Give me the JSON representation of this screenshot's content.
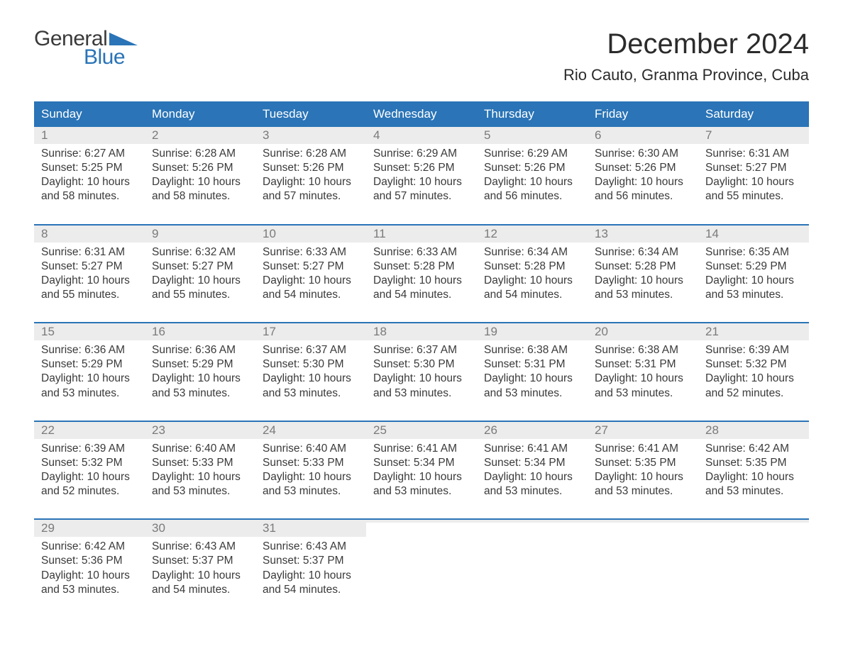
{
  "colors": {
    "header_bg": "#2a74b7",
    "header_text": "#ffffff",
    "daynum_bg": "#ececec",
    "daynum_text": "#7a7a7a",
    "body_text": "#3a3a3a",
    "week_border": "#2a74b7",
    "logo_blue": "#2a74b7",
    "background": "#ffffff"
  },
  "logo": {
    "line1": "General",
    "line2": "Blue"
  },
  "title": "December 2024",
  "location": "Rio Cauto, Granma Province, Cuba",
  "day_names": [
    "Sunday",
    "Monday",
    "Tuesday",
    "Wednesday",
    "Thursday",
    "Friday",
    "Saturday"
  ],
  "weeks": [
    [
      {
        "n": "1",
        "sr": "Sunrise: 6:27 AM",
        "ss": "Sunset: 5:25 PM",
        "d1": "Daylight: 10 hours",
        "d2": "and 58 minutes."
      },
      {
        "n": "2",
        "sr": "Sunrise: 6:28 AM",
        "ss": "Sunset: 5:26 PM",
        "d1": "Daylight: 10 hours",
        "d2": "and 58 minutes."
      },
      {
        "n": "3",
        "sr": "Sunrise: 6:28 AM",
        "ss": "Sunset: 5:26 PM",
        "d1": "Daylight: 10 hours",
        "d2": "and 57 minutes."
      },
      {
        "n": "4",
        "sr": "Sunrise: 6:29 AM",
        "ss": "Sunset: 5:26 PM",
        "d1": "Daylight: 10 hours",
        "d2": "and 57 minutes."
      },
      {
        "n": "5",
        "sr": "Sunrise: 6:29 AM",
        "ss": "Sunset: 5:26 PM",
        "d1": "Daylight: 10 hours",
        "d2": "and 56 minutes."
      },
      {
        "n": "6",
        "sr": "Sunrise: 6:30 AM",
        "ss": "Sunset: 5:26 PM",
        "d1": "Daylight: 10 hours",
        "d2": "and 56 minutes."
      },
      {
        "n": "7",
        "sr": "Sunrise: 6:31 AM",
        "ss": "Sunset: 5:27 PM",
        "d1": "Daylight: 10 hours",
        "d2": "and 55 minutes."
      }
    ],
    [
      {
        "n": "8",
        "sr": "Sunrise: 6:31 AM",
        "ss": "Sunset: 5:27 PM",
        "d1": "Daylight: 10 hours",
        "d2": "and 55 minutes."
      },
      {
        "n": "9",
        "sr": "Sunrise: 6:32 AM",
        "ss": "Sunset: 5:27 PM",
        "d1": "Daylight: 10 hours",
        "d2": "and 55 minutes."
      },
      {
        "n": "10",
        "sr": "Sunrise: 6:33 AM",
        "ss": "Sunset: 5:27 PM",
        "d1": "Daylight: 10 hours",
        "d2": "and 54 minutes."
      },
      {
        "n": "11",
        "sr": "Sunrise: 6:33 AM",
        "ss": "Sunset: 5:28 PM",
        "d1": "Daylight: 10 hours",
        "d2": "and 54 minutes."
      },
      {
        "n": "12",
        "sr": "Sunrise: 6:34 AM",
        "ss": "Sunset: 5:28 PM",
        "d1": "Daylight: 10 hours",
        "d2": "and 54 minutes."
      },
      {
        "n": "13",
        "sr": "Sunrise: 6:34 AM",
        "ss": "Sunset: 5:28 PM",
        "d1": "Daylight: 10 hours",
        "d2": "and 53 minutes."
      },
      {
        "n": "14",
        "sr": "Sunrise: 6:35 AM",
        "ss": "Sunset: 5:29 PM",
        "d1": "Daylight: 10 hours",
        "d2": "and 53 minutes."
      }
    ],
    [
      {
        "n": "15",
        "sr": "Sunrise: 6:36 AM",
        "ss": "Sunset: 5:29 PM",
        "d1": "Daylight: 10 hours",
        "d2": "and 53 minutes."
      },
      {
        "n": "16",
        "sr": "Sunrise: 6:36 AM",
        "ss": "Sunset: 5:29 PM",
        "d1": "Daylight: 10 hours",
        "d2": "and 53 minutes."
      },
      {
        "n": "17",
        "sr": "Sunrise: 6:37 AM",
        "ss": "Sunset: 5:30 PM",
        "d1": "Daylight: 10 hours",
        "d2": "and 53 minutes."
      },
      {
        "n": "18",
        "sr": "Sunrise: 6:37 AM",
        "ss": "Sunset: 5:30 PM",
        "d1": "Daylight: 10 hours",
        "d2": "and 53 minutes."
      },
      {
        "n": "19",
        "sr": "Sunrise: 6:38 AM",
        "ss": "Sunset: 5:31 PM",
        "d1": "Daylight: 10 hours",
        "d2": "and 53 minutes."
      },
      {
        "n": "20",
        "sr": "Sunrise: 6:38 AM",
        "ss": "Sunset: 5:31 PM",
        "d1": "Daylight: 10 hours",
        "d2": "and 53 minutes."
      },
      {
        "n": "21",
        "sr": "Sunrise: 6:39 AM",
        "ss": "Sunset: 5:32 PM",
        "d1": "Daylight: 10 hours",
        "d2": "and 52 minutes."
      }
    ],
    [
      {
        "n": "22",
        "sr": "Sunrise: 6:39 AM",
        "ss": "Sunset: 5:32 PM",
        "d1": "Daylight: 10 hours",
        "d2": "and 52 minutes."
      },
      {
        "n": "23",
        "sr": "Sunrise: 6:40 AM",
        "ss": "Sunset: 5:33 PM",
        "d1": "Daylight: 10 hours",
        "d2": "and 53 minutes."
      },
      {
        "n": "24",
        "sr": "Sunrise: 6:40 AM",
        "ss": "Sunset: 5:33 PM",
        "d1": "Daylight: 10 hours",
        "d2": "and 53 minutes."
      },
      {
        "n": "25",
        "sr": "Sunrise: 6:41 AM",
        "ss": "Sunset: 5:34 PM",
        "d1": "Daylight: 10 hours",
        "d2": "and 53 minutes."
      },
      {
        "n": "26",
        "sr": "Sunrise: 6:41 AM",
        "ss": "Sunset: 5:34 PM",
        "d1": "Daylight: 10 hours",
        "d2": "and 53 minutes."
      },
      {
        "n": "27",
        "sr": "Sunrise: 6:41 AM",
        "ss": "Sunset: 5:35 PM",
        "d1": "Daylight: 10 hours",
        "d2": "and 53 minutes."
      },
      {
        "n": "28",
        "sr": "Sunrise: 6:42 AM",
        "ss": "Sunset: 5:35 PM",
        "d1": "Daylight: 10 hours",
        "d2": "and 53 minutes."
      }
    ],
    [
      {
        "n": "29",
        "sr": "Sunrise: 6:42 AM",
        "ss": "Sunset: 5:36 PM",
        "d1": "Daylight: 10 hours",
        "d2": "and 53 minutes."
      },
      {
        "n": "30",
        "sr": "Sunrise: 6:43 AM",
        "ss": "Sunset: 5:37 PM",
        "d1": "Daylight: 10 hours",
        "d2": "and 54 minutes."
      },
      {
        "n": "31",
        "sr": "Sunrise: 6:43 AM",
        "ss": "Sunset: 5:37 PM",
        "d1": "Daylight: 10 hours",
        "d2": "and 54 minutes."
      },
      {
        "n": "",
        "sr": "",
        "ss": "",
        "d1": "",
        "d2": ""
      },
      {
        "n": "",
        "sr": "",
        "ss": "",
        "d1": "",
        "d2": ""
      },
      {
        "n": "",
        "sr": "",
        "ss": "",
        "d1": "",
        "d2": ""
      },
      {
        "n": "",
        "sr": "",
        "ss": "",
        "d1": "",
        "d2": ""
      }
    ]
  ]
}
